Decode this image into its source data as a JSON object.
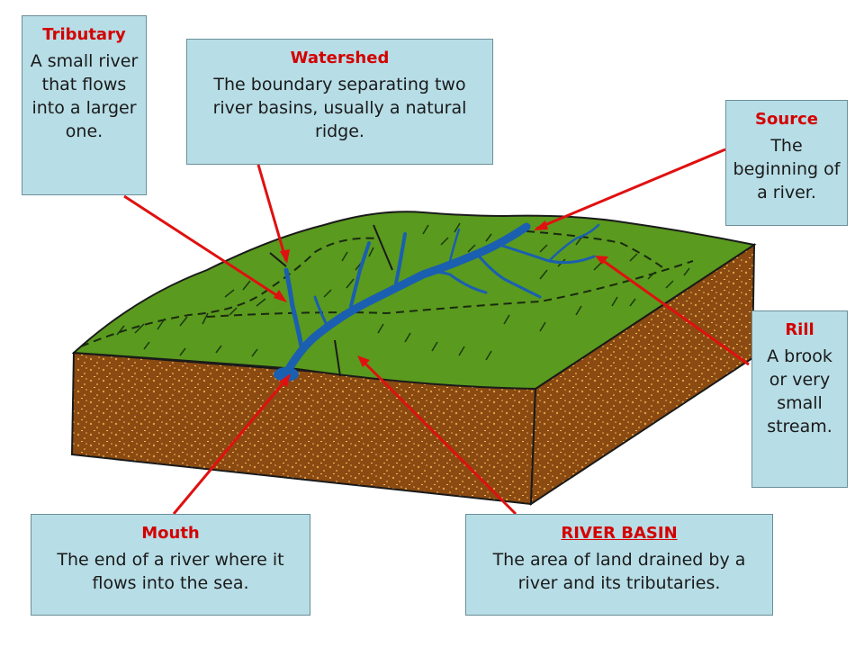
{
  "labels": {
    "tributary": {
      "title": "Tributary",
      "description": "A small river that flows into a larger one."
    },
    "watershed": {
      "title": "Watershed",
      "description": "The boundary separating two river basins, usually a natural ridge."
    },
    "source": {
      "title": "Source",
      "description": "The beginning of a river."
    },
    "rill": {
      "title": "Rill",
      "description": "A brook or very small stream."
    },
    "mouth": {
      "title": "Mouth",
      "description": "The end of a river where it flows into the sea."
    },
    "river_basin": {
      "title": "RIVER BASIN",
      "description": "The area of land drained by a river and its tributaries."
    }
  },
  "colors": {
    "box_fill": "#b7dde6",
    "title_text": "#d40000",
    "pointer": "#e01010",
    "grass": "#5a9a1e",
    "soil": "#8a4a12",
    "soil_speckle": "#e0a040",
    "river": "#1a5fb0"
  }
}
